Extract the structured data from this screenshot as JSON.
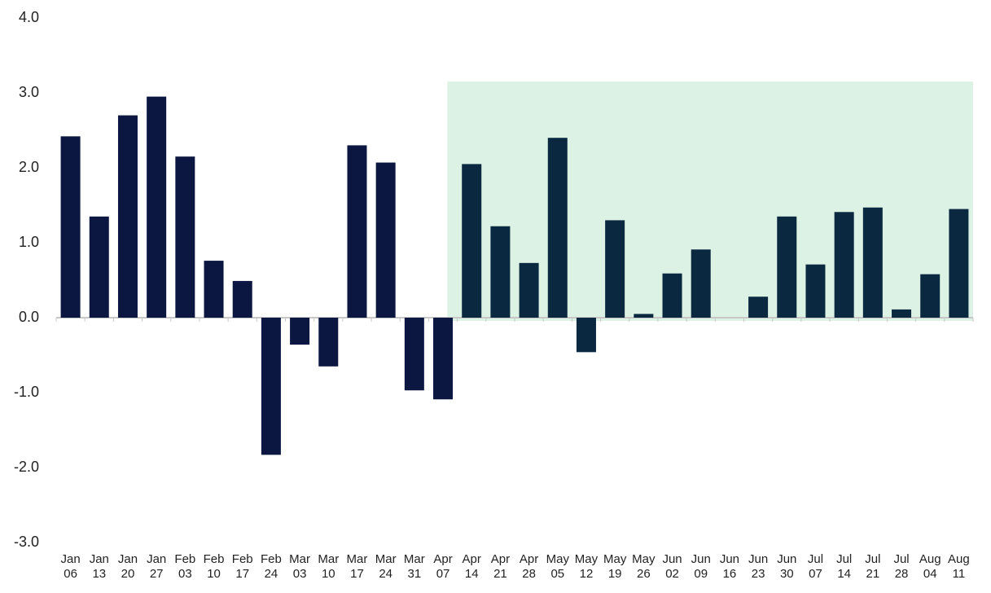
{
  "chart_data": {
    "type": "bar",
    "categories": [
      "Jan 06",
      "Jan 13",
      "Jan 20",
      "Jan 27",
      "Feb 03",
      "Feb 10",
      "Feb 17",
      "Feb 24",
      "Mar 03",
      "Mar 10",
      "Mar 17",
      "Mar 24",
      "Mar 31",
      "Apr 07",
      "Apr 14",
      "Apr 21",
      "Apr 28",
      "May 05",
      "May 12",
      "May 19",
      "May 26",
      "Jun 02",
      "Jun 09",
      "Jun 16",
      "Jun 23",
      "Jun 30",
      "Jul 07",
      "Jul 14",
      "Jul 21",
      "Jul 28",
      "Aug 04",
      "Aug 11"
    ],
    "values": [
      2.42,
      1.35,
      2.7,
      2.95,
      2.15,
      0.76,
      0.49,
      -1.83,
      -0.36,
      -0.65,
      2.3,
      2.07,
      -0.97,
      -1.09,
      2.05,
      1.22,
      0.73,
      2.4,
      -0.46,
      1.3,
      0.05,
      0.59,
      0.91,
      0,
      0.28,
      1.35,
      0.71,
      1.41,
      1.47,
      0.11,
      0.58,
      1.45
    ],
    "color": "#0b1740",
    "ylim": [
      -3,
      4
    ],
    "yticks": [
      {
        "value": -3,
        "label": "-3.0"
      },
      {
        "value": -2,
        "label": "-2.0"
      },
      {
        "value": -1,
        "label": "-1.0"
      },
      {
        "value": 0,
        "label": "0.0"
      },
      {
        "value": 1,
        "label": "1.0"
      },
      {
        "value": 2,
        "label": "2.0"
      },
      {
        "value": 3,
        "label": "3.0"
      },
      {
        "value": 4,
        "label": "4.0"
      }
    ],
    "grid": false,
    "highlight": {
      "from_index": 14,
      "top": 3.15,
      "color": "#dcf2e5",
      "bar_color": "#0a2840"
    }
  }
}
